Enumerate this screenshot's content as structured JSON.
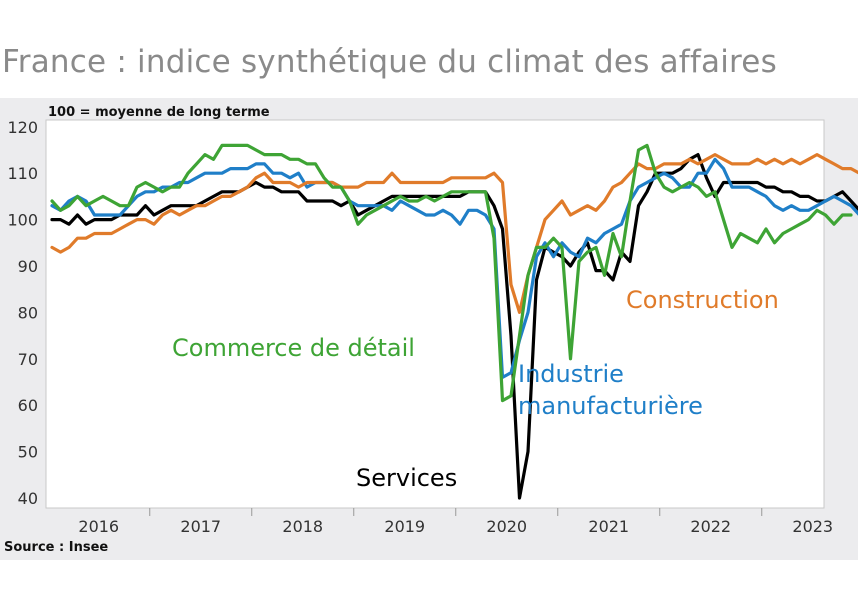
{
  "title": "France : indice synthétique du climat des affaires",
  "note": "100 = moyenne de long terme",
  "source": "Source : Insee",
  "chart_data": {
    "type": "line",
    "x_start": "2016-01",
    "frequency": "monthly",
    "x_ticks": [
      "2016",
      "2017",
      "2018",
      "2019",
      "2020",
      "2021",
      "2022",
      "2023"
    ],
    "ylim": [
      38,
      120
    ],
    "y_ticks": [
      40,
      50,
      60,
      70,
      80,
      90,
      100,
      110,
      120
    ],
    "grid": false,
    "series": [
      {
        "name": "Services",
        "color": "#000000",
        "values": [
          100,
          100,
          99,
          101,
          99,
          100,
          100,
          100,
          101,
          101,
          101,
          103,
          101,
          102,
          103,
          103,
          103,
          103,
          104,
          105,
          106,
          106,
          106,
          107,
          108,
          107,
          107,
          106,
          106,
          106,
          104,
          104,
          104,
          104,
          103,
          104,
          101,
          102,
          103,
          104,
          105,
          105,
          105,
          105,
          105,
          105,
          105,
          105,
          105,
          106,
          106,
          106,
          103,
          98,
          75,
          40,
          50,
          87,
          94,
          93,
          92,
          90,
          93,
          95,
          89,
          89,
          87,
          93,
          91,
          103,
          106,
          110,
          110,
          110,
          111,
          113,
          114,
          109,
          105,
          108,
          108,
          108,
          108,
          108,
          107,
          107,
          106,
          106,
          105,
          105,
          104,
          104,
          105,
          106,
          104,
          102,
          101
        ]
      },
      {
        "name": "Industrie manufacturière",
        "color": "#1f7fc8",
        "values": [
          103,
          102,
          104,
          105,
          104,
          101,
          101,
          101,
          101,
          103,
          105,
          106,
          106,
          107,
          107,
          108,
          108,
          109,
          110,
          110,
          110,
          111,
          111,
          111,
          112,
          112,
          110,
          110,
          109,
          110,
          107,
          108,
          108,
          108,
          107,
          104,
          103,
          103,
          103,
          103,
          102,
          104,
          103,
          102,
          101,
          101,
          102,
          101,
          99,
          102,
          102,
          101,
          98,
          66,
          67,
          74,
          80,
          92,
          95,
          92,
          95,
          93,
          92,
          96,
          95,
          97,
          98,
          99,
          104,
          107,
          108,
          109,
          110,
          109,
          107,
          107,
          110,
          110,
          113,
          111,
          107,
          107,
          107,
          106,
          105,
          103,
          102,
          103,
          102,
          102,
          103,
          104,
          105,
          104,
          103,
          101,
          99
        ]
      },
      {
        "name": "Construction",
        "color": "#e07b2a",
        "values": [
          94,
          93,
          94,
          96,
          96,
          97,
          97,
          97,
          98,
          99,
          100,
          100,
          99,
          101,
          102,
          101,
          102,
          103,
          103,
          104,
          105,
          105,
          106,
          107,
          109,
          110,
          108,
          108,
          108,
          107,
          108,
          108,
          108,
          108,
          107,
          107,
          107,
          108,
          108,
          108,
          110,
          108,
          108,
          108,
          108,
          108,
          108,
          109,
          109,
          109,
          109,
          109,
          110,
          108,
          86,
          80,
          88,
          94,
          100,
          102,
          104,
          101,
          102,
          103,
          102,
          104,
          107,
          108,
          110,
          112,
          111,
          111,
          112,
          112,
          112,
          113,
          112,
          113,
          114,
          113,
          112,
          112,
          112,
          113,
          112,
          113,
          112,
          113,
          112,
          113,
          114,
          113,
          112,
          111,
          111,
          110,
          108
        ]
      },
      {
        "name": "Commerce de détail",
        "color": "#3ea435",
        "values": [
          104,
          102,
          103,
          105,
          103,
          104,
          105,
          104,
          103,
          103,
          107,
          108,
          107,
          106,
          107,
          107,
          110,
          112,
          114,
          113,
          116,
          116,
          116,
          116,
          115,
          114,
          114,
          114,
          113,
          113,
          112,
          112,
          109,
          107,
          107,
          104,
          99,
          101,
          102,
          103,
          104,
          105,
          104,
          104,
          105,
          104,
          105,
          106,
          106,
          106,
          106,
          106,
          96,
          61,
          62,
          75,
          88,
          94,
          94,
          96,
          94,
          70,
          91,
          93,
          94,
          88,
          97,
          92,
          104,
          115,
          116,
          110,
          107,
          106,
          107,
          108,
          107,
          105,
          106,
          100,
          94,
          97,
          96,
          95,
          98,
          95,
          97,
          98,
          99,
          100,
          102,
          101,
          99,
          101,
          101
        ]
      }
    ],
    "annotations": [
      {
        "text": "Commerce de détail",
        "color": "#3ea435"
      },
      {
        "text": "Construction",
        "color": "#e07b2a"
      },
      {
        "text": "Industrie",
        "color": "#1f7fc8"
      },
      {
        "text": "manufacturière",
        "color": "#1f7fc8"
      },
      {
        "text": "Services",
        "color": "#000000"
      }
    ]
  }
}
